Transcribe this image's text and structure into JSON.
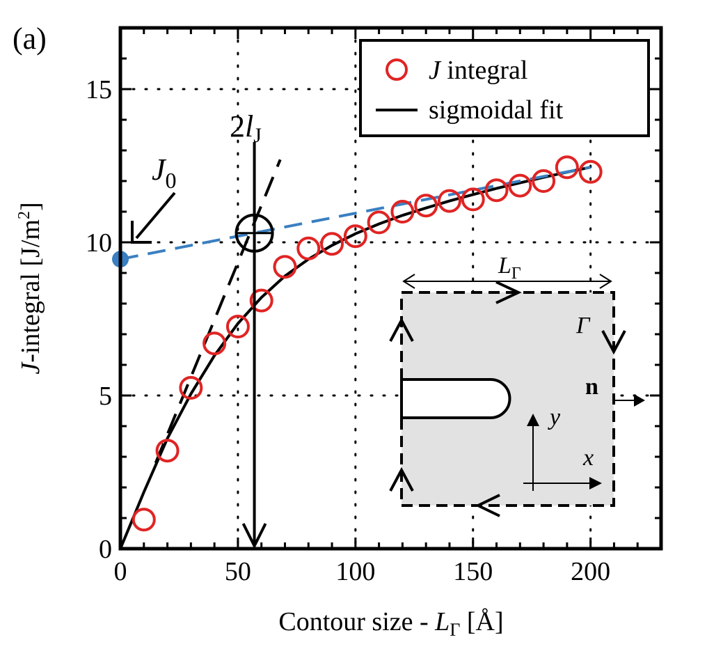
{
  "chart_data": {
    "type": "scatter",
    "panel_label": "(a)",
    "xlabel": {
      "main": "Contour size - ",
      "symbol": "L",
      "subscript": "Γ",
      "unit": " [Å]"
    },
    "ylabel": {
      "symbol": "J",
      "main": "-integral [J/m",
      "sup": "2",
      "close": "]"
    },
    "xlim": [
      0,
      230
    ],
    "ylim": [
      0,
      17
    ],
    "x_ticks": [
      0,
      50,
      100,
      150,
      200
    ],
    "x_tick_labels": [
      "0",
      "50",
      "100",
      "150",
      "200"
    ],
    "y_ticks": [
      0,
      5,
      10,
      15
    ],
    "y_tick_labels": [
      "0",
      "5",
      "10",
      "15"
    ],
    "grid": "dotted",
    "legend_position": "top-right",
    "series": [
      {
        "name": "J integral",
        "legend_symbol": "J",
        "legend_text": " integral",
        "kind": "markers",
        "color": "#e02424",
        "x": [
          10,
          20,
          30,
          40,
          50,
          60,
          70,
          80,
          90,
          100,
          110,
          120,
          130,
          140,
          150,
          160,
          170,
          180,
          190,
          200
        ],
        "y": [
          0.95,
          3.2,
          5.25,
          6.7,
          7.25,
          8.1,
          9.2,
          9.8,
          9.95,
          10.2,
          10.65,
          11.0,
          11.2,
          11.35,
          11.4,
          11.7,
          11.85,
          12.0,
          12.45,
          12.3
        ]
      },
      {
        "name": "sigmoidal fit",
        "kind": "line",
        "color": "#000000",
        "x": [
          0,
          10,
          20,
          30,
          40,
          50,
          60,
          70,
          80,
          90,
          100,
          110,
          120,
          130,
          140,
          150,
          160,
          170,
          180,
          190,
          200
        ],
        "y": [
          0,
          1.85,
          3.6,
          5.05,
          6.3,
          7.35,
          8.2,
          8.9,
          9.45,
          9.9,
          10.28,
          10.6,
          10.88,
          11.12,
          11.35,
          11.56,
          11.76,
          11.94,
          12.12,
          12.29,
          12.45
        ]
      },
      {
        "name": "initial tangent",
        "kind": "dashed-line",
        "color": "#000000",
        "x": [
          15,
          68
        ],
        "y": [
          2.8,
          12.7
        ]
      },
      {
        "name": "linear extrapolation",
        "kind": "dashed-line",
        "color": "#3a7fc1",
        "x": [
          0,
          200
        ],
        "y": [
          9.45,
          12.45
        ]
      }
    ],
    "annotations": {
      "J0": {
        "symbol": "J",
        "subscript": "0",
        "value": 9.45,
        "point_color": "#3a7fc1"
      },
      "two_lJ": {
        "prefix": "2",
        "symbol": "l",
        "subscript": "J",
        "x": 57,
        "intersection_y": 10.3
      }
    },
    "inset": {
      "L_label": "L",
      "L_subscript": "Γ",
      "gamma_label": "Γ",
      "normal_label": "n",
      "x_label": "x",
      "y_label": "y",
      "fill_color": "#e2e2e2"
    }
  }
}
